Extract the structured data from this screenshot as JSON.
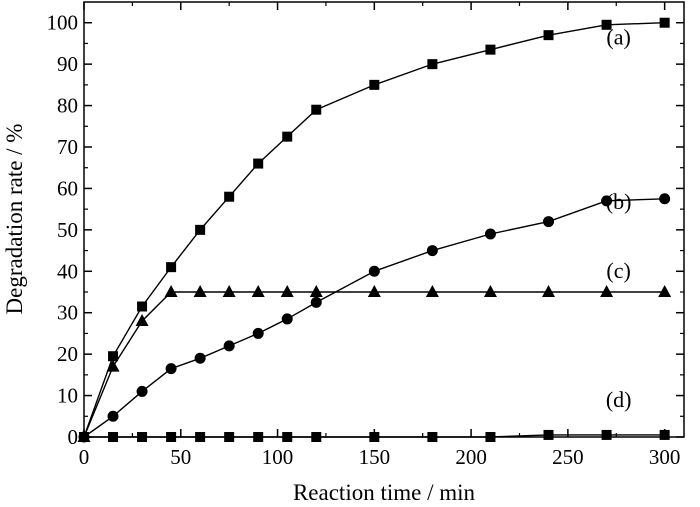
{
  "chart_data": {
    "type": "line",
    "title": "",
    "xlabel": "Reaction time / min",
    "ylabel": "Degradation rate / %",
    "xlim": [
      0,
      310
    ],
    "ylim": [
      0,
      105
    ],
    "x_ticks": [
      0,
      50,
      100,
      150,
      200,
      250,
      300
    ],
    "y_ticks": [
      0,
      10,
      20,
      30,
      40,
      50,
      60,
      70,
      80,
      90,
      100
    ],
    "grid": false,
    "legend": "none",
    "series": [
      {
        "name": "(a)",
        "marker": "square",
        "x": [
          0,
          15,
          30,
          45,
          60,
          75,
          90,
          105,
          120,
          150,
          180,
          210,
          240,
          270,
          300
        ],
        "values": [
          0,
          19.5,
          31.5,
          41,
          50,
          58,
          66,
          72.5,
          79,
          85,
          90,
          93.5,
          97,
          99.5,
          100
        ]
      },
      {
        "name": "(b)",
        "marker": "circle",
        "x": [
          0,
          15,
          30,
          45,
          60,
          75,
          90,
          105,
          120,
          150,
          180,
          210,
          240,
          270,
          300
        ],
        "values": [
          0,
          5,
          11,
          16.5,
          19,
          22,
          25,
          28.5,
          32.5,
          40,
          45,
          49,
          52,
          57,
          57.5
        ]
      },
      {
        "name": "(c)",
        "marker": "triangle",
        "x": [
          0,
          15,
          30,
          45,
          60,
          75,
          90,
          105,
          120,
          150,
          180,
          210,
          240,
          270,
          300
        ],
        "values": [
          0,
          17,
          28,
          35,
          35,
          35,
          35,
          35,
          35,
          35,
          35,
          35,
          35,
          35,
          35
        ]
      },
      {
        "name": "(d)",
        "marker": "square",
        "x": [
          0,
          15,
          30,
          45,
          60,
          75,
          90,
          105,
          120,
          150,
          180,
          210,
          240,
          270,
          300
        ],
        "values": [
          0,
          0,
          0,
          0,
          0,
          0,
          0,
          0,
          0,
          0,
          0,
          0,
          0.5,
          0.5,
          0.5
        ]
      }
    ]
  }
}
